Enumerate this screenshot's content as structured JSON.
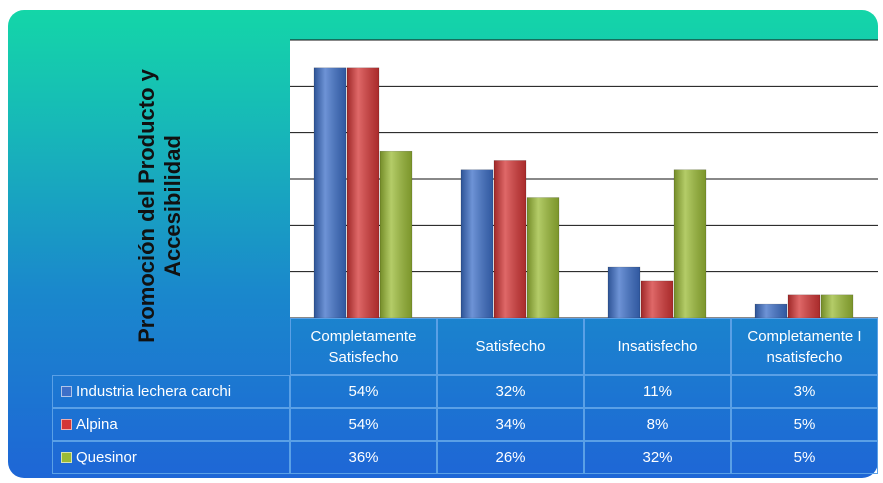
{
  "chart_data": {
    "type": "bar",
    "y_label": "Promoción del Producto y Accesibilidad",
    "categories": [
      "Completamente Satisfecho",
      "Satisfecho",
      "Insatisfecho",
      "Completamente Insatisfecho"
    ],
    "series": [
      {
        "name": "Industria lechera carchi",
        "color": "#3d6fc8",
        "values": [
          54,
          32,
          11,
          3
        ],
        "value_labels": [
          "54%",
          "32%",
          "11%",
          "3%"
        ]
      },
      {
        "name": "Alpina",
        "color": "#d43636",
        "values": [
          54,
          34,
          8,
          5
        ],
        "value_labels": [
          "54%",
          "34%",
          "8%",
          "5%"
        ]
      },
      {
        "name": "Quesinor",
        "color": "#9bbb36",
        "values": [
          36,
          26,
          32,
          5
        ],
        "value_labels": [
          "36%",
          "26%",
          "32%",
          "5%"
        ]
      }
    ],
    "ylim": [
      0,
      60
    ],
    "yticks": [
      0,
      10,
      20,
      30,
      40,
      50,
      60
    ],
    "grid": true
  }
}
